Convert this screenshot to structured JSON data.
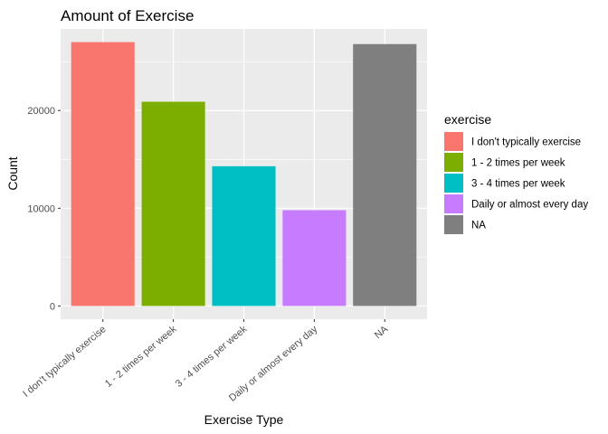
{
  "chart_data": {
    "type": "bar",
    "title": "Amount of Exercise",
    "xlabel": "Exercise Type",
    "ylabel": "Count",
    "categories": [
      "I don't typically exercise",
      "1 - 2 times per week",
      "3 - 4 times per week",
      "Daily or almost every day",
      "NA"
    ],
    "values": [
      27000,
      20900,
      14300,
      9800,
      26800
    ],
    "colors": [
      "#F8766D",
      "#7CAE00",
      "#00BFC4",
      "#C77CFF",
      "#7F7F7F"
    ],
    "ylim": [
      -1350,
      28350
    ],
    "yticks": [
      0,
      10000,
      20000
    ],
    "ytick_labels": [
      "0",
      "10000",
      "20000"
    ],
    "grid": true,
    "legend": {
      "title": "exercise",
      "position": "right",
      "entries": [
        "I don't typically exercise",
        "1 - 2 times per week",
        "3 - 4 times per week",
        "Daily or almost every day",
        "NA"
      ]
    }
  }
}
